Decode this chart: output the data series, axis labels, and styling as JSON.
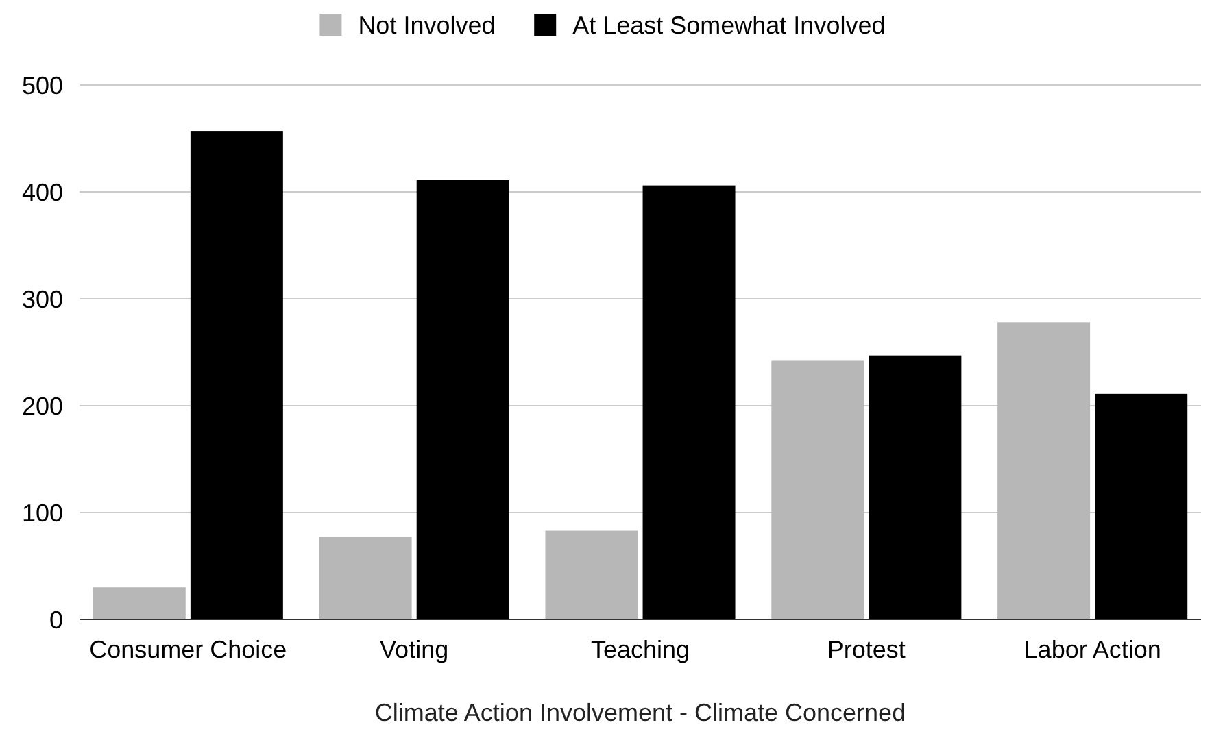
{
  "chart_data": {
    "type": "bar",
    "xlabel": "Climate Action Involvement - Climate Concerned",
    "categories": [
      "Consumer Choice",
      "Voting",
      "Teaching",
      "Protest",
      "Labor Action"
    ],
    "series": [
      {
        "name": "Not Involved",
        "color": "#b7b7b7",
        "values": [
          30,
          77,
          83,
          242,
          278
        ]
      },
      {
        "name": "At Least Somewhat Involved",
        "color": "#000000",
        "values": [
          457,
          411,
          406,
          247,
          211
        ]
      }
    ],
    "ylim": [
      0,
      500
    ],
    "yticks": [
      0,
      100,
      200,
      300,
      400,
      500
    ],
    "grid": "y",
    "legend": "top"
  }
}
